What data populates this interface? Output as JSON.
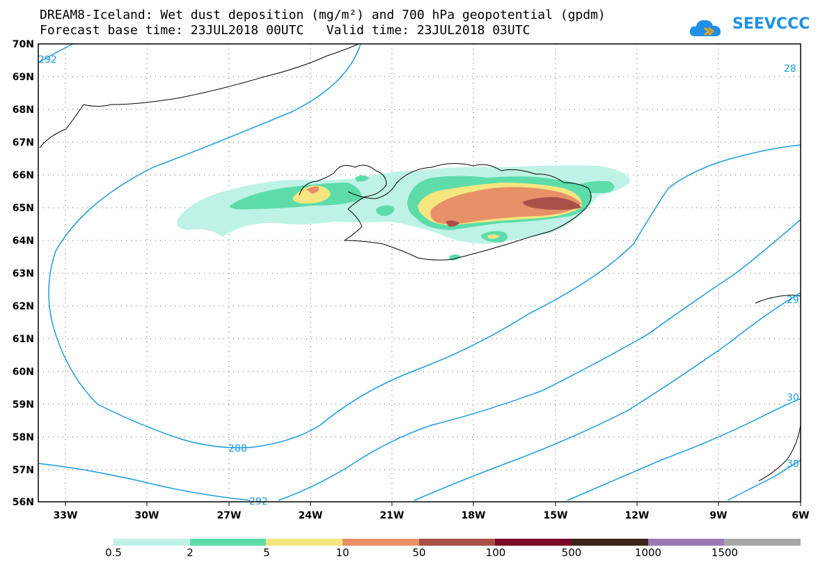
{
  "title_line1": "DREAM8-Iceland: Wet dust deposition (mg/m²) and 700 hPa geopotential (gpdm)",
  "title_line2": "Forecast base time: 23JUL2018 00UTC   Valid time: 23JUL2018 03UTC",
  "logo": {
    "text": "SEEVCCC",
    "icon": "cloud-icon",
    "color": "#1e90e6"
  },
  "axes": {
    "lat_labels": [
      "70N",
      "69N",
      "68N",
      "67N",
      "66N",
      "65N",
      "64N",
      "63N",
      "62N",
      "61N",
      "60N",
      "59N",
      "58N",
      "57N",
      "56N"
    ],
    "lon_labels": [
      "33W",
      "30W",
      "27W",
      "24W",
      "21W",
      "18W",
      "15W",
      "12W",
      "9W",
      "6W"
    ]
  },
  "contour_labels": [
    "292",
    "288",
    "292",
    "28",
    "29",
    "30",
    "30"
  ],
  "legend": {
    "colors": [
      "#bff2e6",
      "#5ddcaa",
      "#f5e680",
      "#e89068",
      "#a85048",
      "#7a0a28",
      "#3a2618",
      "#9a78b4",
      "#a8a8a8"
    ],
    "labels": [
      "0.5",
      "2",
      "5",
      "10",
      "50",
      "100",
      "500",
      "1000",
      "1500"
    ]
  }
}
